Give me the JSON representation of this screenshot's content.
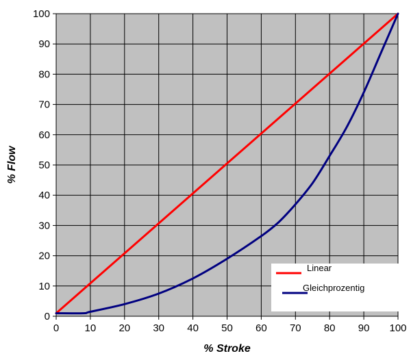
{
  "chart_data": {
    "type": "line",
    "xlabel": "% Stroke",
    "ylabel": "% Flow",
    "xlim": [
      0,
      100
    ],
    "ylim": [
      0,
      100
    ],
    "xticks": [
      "0",
      "10",
      "20",
      "30",
      "40",
      "50",
      "60",
      "70",
      "80",
      "90",
      "100"
    ],
    "yticks": [
      "0",
      "10",
      "20",
      "30",
      "40",
      "50",
      "60",
      "70",
      "80",
      "90",
      "100"
    ],
    "grid": true,
    "legend_position": "bottom-right",
    "plot_background": "#c0c0c0",
    "series": [
      {
        "name": "Linear",
        "color": "#ff0000",
        "x": [
          0,
          100
        ],
        "y": [
          1,
          100
        ]
      },
      {
        "name": "Gleichprozentig",
        "color": "#000080",
        "x": [
          0,
          8,
          10,
          20,
          30,
          40,
          50,
          60,
          65,
          70,
          75,
          80,
          85,
          90,
          95,
          100
        ],
        "y": [
          1,
          1,
          1.5,
          4,
          7.5,
          12.5,
          19,
          26.5,
          31,
          37,
          44,
          53,
          62.5,
          74,
          87,
          100
        ]
      }
    ]
  }
}
